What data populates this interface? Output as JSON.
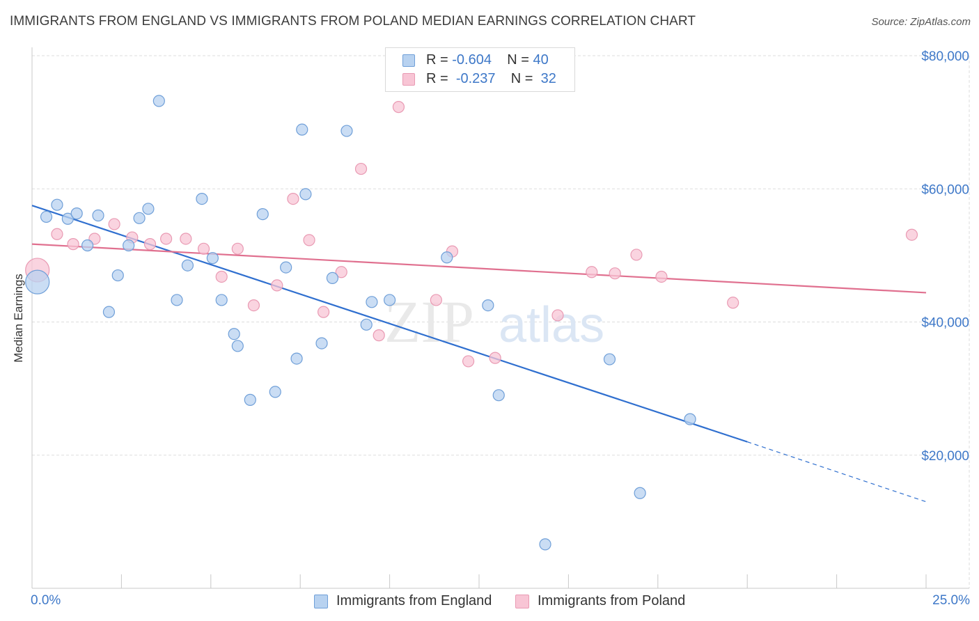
{
  "title": "IMMIGRANTS FROM ENGLAND VS IMMIGRANTS FROM POLAND MEDIAN EARNINGS CORRELATION CHART",
  "source": "Source: ZipAtlas.com",
  "watermark": {
    "zip": "ZIP",
    "atlas": "atlas"
  },
  "legend_top": {
    "rows": [
      {
        "r_label": "R =",
        "r_value": "-0.604",
        "n_label": "N =",
        "n_value": "40"
      },
      {
        "r_label": "R =",
        "r_value": "-0.237",
        "n_label": "N =",
        "n_value": "32"
      }
    ]
  },
  "colors": {
    "england_fill": "#b8d2f0",
    "england_stroke": "#6f9fd8",
    "england_line": "#2f6fcf",
    "poland_fill": "#f8c5d5",
    "poland_stroke": "#e99ab3",
    "poland_line": "#e0708f",
    "axis_text": "#3e78c8",
    "grid": "#dddddd"
  },
  "chart_data": {
    "type": "scatter",
    "title": "IMMIGRANTS FROM ENGLAND VS IMMIGRANTS FROM POLAND MEDIAN EARNINGS CORRELATION CHART",
    "xlabel": "",
    "ylabel": "Median Earnings",
    "xlim": [
      0,
      25
    ],
    "ylim": [
      0,
      80000
    ],
    "x_tick_labels": [
      "0.0%",
      "25.0%"
    ],
    "y_ticks": [
      20000,
      40000,
      60000,
      80000
    ],
    "y_tick_labels": [
      "$20,000",
      "$40,000",
      "$60,000",
      "$80,000"
    ],
    "grid": true,
    "legend_position": "bottom",
    "series": [
      {
        "name": "Immigrants from England",
        "r": -0.604,
        "n": 40,
        "trend": {
          "x": [
            0.0,
            20.0
          ],
          "y": [
            57500,
            22000
          ],
          "dashed_to": {
            "x": 25.0,
            "y": 13000
          }
        },
        "points": [
          {
            "x": 0.15,
            "y": 46000,
            "big": true
          },
          {
            "x": 0.4,
            "y": 55800
          },
          {
            "x": 0.7,
            "y": 57600
          },
          {
            "x": 1.0,
            "y": 55500
          },
          {
            "x": 1.25,
            "y": 56300
          },
          {
            "x": 1.55,
            "y": 51500
          },
          {
            "x": 1.85,
            "y": 56000
          },
          {
            "x": 2.4,
            "y": 47000
          },
          {
            "x": 2.15,
            "y": 41500
          },
          {
            "x": 2.7,
            "y": 51500
          },
          {
            "x": 3.0,
            "y": 55600
          },
          {
            "x": 3.25,
            "y": 57000
          },
          {
            "x": 3.55,
            "y": 73200
          },
          {
            "x": 4.05,
            "y": 43300
          },
          {
            "x": 4.35,
            "y": 48500
          },
          {
            "x": 4.75,
            "y": 58500
          },
          {
            "x": 5.05,
            "y": 49600
          },
          {
            "x": 5.3,
            "y": 43300
          },
          {
            "x": 5.65,
            "y": 38200
          },
          {
            "x": 5.75,
            "y": 36400
          },
          {
            "x": 6.1,
            "y": 28300
          },
          {
            "x": 6.45,
            "y": 56200
          },
          {
            "x": 6.8,
            "y": 29500
          },
          {
            "x": 7.1,
            "y": 48200
          },
          {
            "x": 7.4,
            "y": 34500
          },
          {
            "x": 7.55,
            "y": 68900
          },
          {
            "x": 7.65,
            "y": 59200
          },
          {
            "x": 8.1,
            "y": 36800
          },
          {
            "x": 8.4,
            "y": 46600
          },
          {
            "x": 8.8,
            "y": 68700
          },
          {
            "x": 9.35,
            "y": 39600
          },
          {
            "x": 9.5,
            "y": 43000
          },
          {
            "x": 10.0,
            "y": 43300
          },
          {
            "x": 11.6,
            "y": 49700
          },
          {
            "x": 12.75,
            "y": 42500
          },
          {
            "x": 13.05,
            "y": 29000
          },
          {
            "x": 14.35,
            "y": 6600
          },
          {
            "x": 16.15,
            "y": 34400
          },
          {
            "x": 17.0,
            "y": 14300
          },
          {
            "x": 18.4,
            "y": 25400
          }
        ]
      },
      {
        "name": "Immigrants from Poland",
        "r": -0.237,
        "n": 32,
        "trend": {
          "x": [
            0.0,
            25.0
          ],
          "y": [
            51700,
            44400
          ]
        },
        "points": [
          {
            "x": 0.15,
            "y": 47800,
            "big": true
          },
          {
            "x": 0.7,
            "y": 53200
          },
          {
            "x": 1.15,
            "y": 51700
          },
          {
            "x": 1.75,
            "y": 52500
          },
          {
            "x": 2.3,
            "y": 54700
          },
          {
            "x": 2.8,
            "y": 52700
          },
          {
            "x": 3.3,
            "y": 51700
          },
          {
            "x": 3.75,
            "y": 52500
          },
          {
            "x": 4.3,
            "y": 52500
          },
          {
            "x": 4.8,
            "y": 51000
          },
          {
            "x": 5.3,
            "y": 46800
          },
          {
            "x": 5.75,
            "y": 51000
          },
          {
            "x": 6.2,
            "y": 42500
          },
          {
            "x": 6.85,
            "y": 45500
          },
          {
            "x": 7.3,
            "y": 58500
          },
          {
            "x": 7.75,
            "y": 52300
          },
          {
            "x": 8.15,
            "y": 41500
          },
          {
            "x": 8.65,
            "y": 47500
          },
          {
            "x": 9.2,
            "y": 63000
          },
          {
            "x": 9.7,
            "y": 38000
          },
          {
            "x": 10.25,
            "y": 72300
          },
          {
            "x": 11.3,
            "y": 43300
          },
          {
            "x": 11.75,
            "y": 50600
          },
          {
            "x": 12.2,
            "y": 34100
          },
          {
            "x": 12.95,
            "y": 34600
          },
          {
            "x": 14.7,
            "y": 41000
          },
          {
            "x": 15.65,
            "y": 47500
          },
          {
            "x": 16.3,
            "y": 47300
          },
          {
            "x": 16.9,
            "y": 50100
          },
          {
            "x": 17.6,
            "y": 46800
          },
          {
            "x": 19.6,
            "y": 42900
          },
          {
            "x": 24.6,
            "y": 53100
          }
        ]
      }
    ]
  }
}
